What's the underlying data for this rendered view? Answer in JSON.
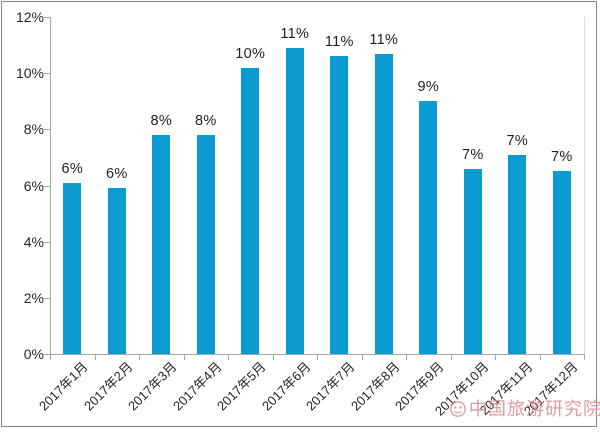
{
  "chart_data": {
    "type": "bar",
    "title": "",
    "xlabel": "",
    "ylabel": "",
    "categories": [
      "2017年1月",
      "2017年2月",
      "2017年3月",
      "2017年4月",
      "2017年5月",
      "2017年6月",
      "2017年7月",
      "2017年8月",
      "2017年9月",
      "2017年10月",
      "2017年11月",
      "2017年12月"
    ],
    "values": [
      6.1,
      5.9,
      7.8,
      7.8,
      10.2,
      10.9,
      10.6,
      10.7,
      9.0,
      6.6,
      7.1,
      6.5
    ],
    "bar_labels": [
      "6%",
      "6%",
      "8%",
      "8%",
      "10%",
      "11%",
      "11%",
      "11%",
      "9%",
      "7%",
      "7%",
      "7%"
    ],
    "ylim": [
      0,
      12
    ],
    "ytick_values": [
      0,
      2,
      4,
      6,
      8,
      10,
      12
    ],
    "ytick_labels": [
      "0%",
      "2%",
      "4%",
      "6%",
      "8%",
      "10%",
      "12%"
    ],
    "grid": false,
    "legend": null,
    "bar_color": "#0c9bd0",
    "axis_color": "#a6a6a6",
    "label_color": "#262626"
  },
  "watermark": {
    "text": "中国旅游研究院",
    "logo_icon": "circular-seal",
    "color": "#d98f93"
  }
}
